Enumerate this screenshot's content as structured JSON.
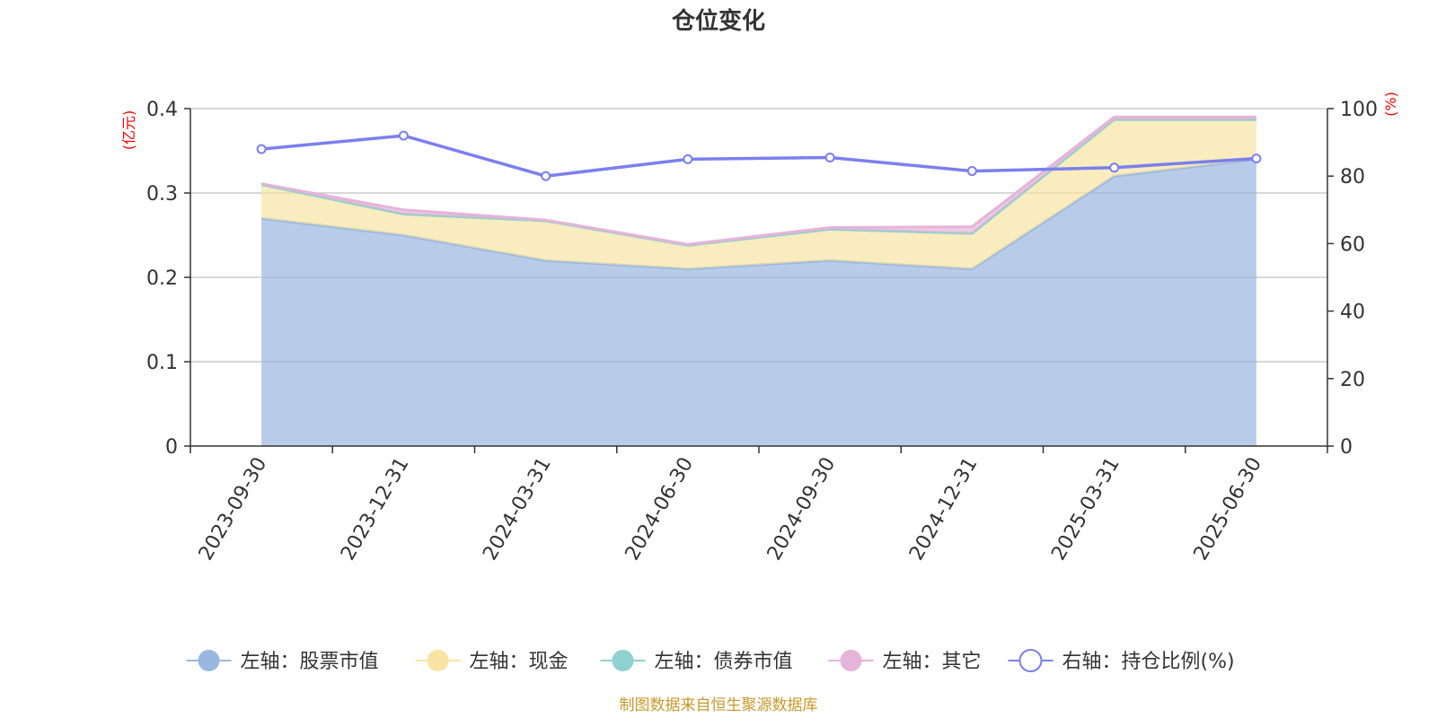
{
  "chart_data": {
    "type": "area",
    "title": "仓位变化",
    "categories": [
      "2023-09-30",
      "2023-12-31",
      "2024-03-31",
      "2024-06-30",
      "2024-09-30",
      "2024-12-31",
      "2025-03-31",
      "2025-06-30"
    ],
    "left_axis": {
      "unit": "(亿元)",
      "ylim": [
        0,
        0.4
      ],
      "ticks": [
        "0",
        "0.1",
        "0.2",
        "0.3",
        "0.4"
      ]
    },
    "right_axis": {
      "unit": "(%)",
      "ylim": [
        0,
        100
      ],
      "ticks": [
        "0",
        "20",
        "40",
        "60",
        "80",
        "100"
      ]
    },
    "grid": true,
    "legend_position": "bottom",
    "series": [
      {
        "name": "左轴：股票市值",
        "axis": "left",
        "stack": true,
        "color": "#9ab7e0",
        "values": [
          0.27,
          0.25,
          0.22,
          0.21,
          0.22,
          0.21,
          0.32,
          0.34
        ]
      },
      {
        "name": "左轴：现金",
        "axis": "left",
        "stack": true,
        "color": "#f7e4a2",
        "values": [
          0.04,
          0.025,
          0.047,
          0.028,
          0.037,
          0.042,
          0.067,
          0.047
        ]
      },
      {
        "name": "左轴：债券市值",
        "axis": "left",
        "stack": true,
        "color": "#8fd1cf",
        "values": [
          0,
          0,
          0,
          0,
          0,
          0,
          0,
          0
        ]
      },
      {
        "name": "左轴：其它",
        "axis": "left",
        "stack": true,
        "color": "#e6b3d9",
        "values": [
          0.001,
          0.005,
          0.001,
          0.001,
          0.002,
          0.008,
          0.003,
          0.003
        ]
      },
      {
        "name": "右轴：持仓比例(%)",
        "axis": "right",
        "stack": false,
        "color": "#7b7fef",
        "values": [
          88,
          92,
          80,
          85,
          85.5,
          81.5,
          82.5,
          85.2
        ]
      }
    ]
  },
  "source_text": "制图数据来自恒生聚源数据库"
}
